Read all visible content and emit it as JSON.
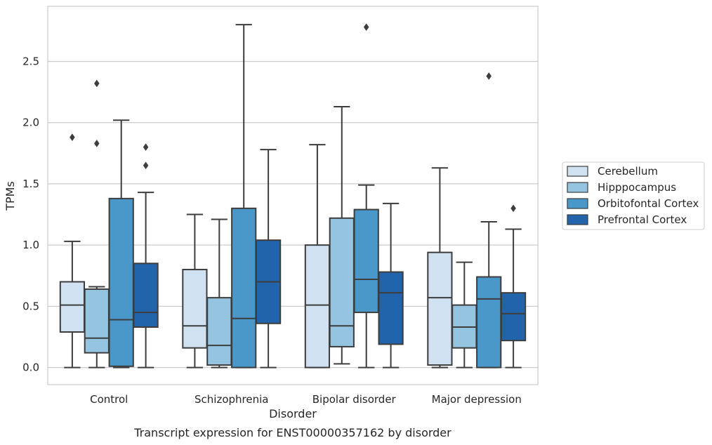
{
  "chart_data": {
    "type": "box",
    "title": "",
    "caption": "Transcript expression for ENST00000357162 by disorder",
    "xlabel": "Disorder",
    "ylabel": "TPMs",
    "ylim": [
      -0.14,
      2.95
    ],
    "yticks": [
      0.0,
      0.5,
      1.0,
      1.5,
      2.0,
      2.5
    ],
    "ytick_labels": [
      "0.0",
      "0.5",
      "1.0",
      "1.5",
      "2.0",
      "2.5"
    ],
    "grid": "horizontal",
    "legend_position": "right",
    "categories": [
      "Control",
      "Schizophrenia",
      "Bipolar disorder",
      "Major depression"
    ],
    "series": [
      {
        "name": "Cerebellum",
        "color": "#d0e1f2",
        "boxes": [
          {
            "whisker_low": 0.0,
            "q1": 0.29,
            "median": 0.51,
            "q3": 0.7,
            "whisker_high": 1.03,
            "outliers": [
              1.88
            ]
          },
          {
            "whisker_low": 0.0,
            "q1": 0.16,
            "median": 0.34,
            "q3": 0.8,
            "whisker_high": 1.25,
            "outliers": []
          },
          {
            "whisker_low": 0.0,
            "q1": 0.0,
            "median": 0.51,
            "q3": 1.0,
            "whisker_high": 1.82,
            "outliers": []
          },
          {
            "whisker_low": 0.0,
            "q1": 0.02,
            "median": 0.57,
            "q3": 0.94,
            "whisker_high": 1.63,
            "outliers": []
          }
        ]
      },
      {
        "name": "Hipppocampus",
        "color": "#94c4df",
        "boxes": [
          {
            "whisker_low": 0.0,
            "q1": 0.12,
            "median": 0.24,
            "q3": 0.64,
            "whisker_high": 0.66,
            "outliers": [
              1.83,
              2.32
            ]
          },
          {
            "whisker_low": 0.0,
            "q1": 0.02,
            "median": 0.18,
            "q3": 0.57,
            "whisker_high": 1.21,
            "outliers": []
          },
          {
            "whisker_low": 0.03,
            "q1": 0.17,
            "median": 0.34,
            "q3": 1.22,
            "whisker_high": 2.13,
            "outliers": []
          },
          {
            "whisker_low": 0.0,
            "q1": 0.16,
            "median": 0.33,
            "q3": 0.51,
            "whisker_high": 0.86,
            "outliers": []
          }
        ]
      },
      {
        "name": "Orbitofontal Cortex",
        "color": "#4a98c9",
        "boxes": [
          {
            "whisker_low": 0.0,
            "q1": 0.01,
            "median": 0.39,
            "q3": 1.38,
            "whisker_high": 2.02,
            "outliers": []
          },
          {
            "whisker_low": 0.0,
            "q1": 0.0,
            "median": 0.4,
            "q3": 1.3,
            "whisker_high": 2.8,
            "outliers": []
          },
          {
            "whisker_low": 0.0,
            "q1": 0.45,
            "median": 0.72,
            "q3": 1.29,
            "whisker_high": 1.49,
            "outliers": [
              2.78
            ]
          },
          {
            "whisker_low": 0.0,
            "q1": 0.0,
            "median": 0.56,
            "q3": 0.74,
            "whisker_high": 1.19,
            "outliers": [
              2.38
            ]
          }
        ]
      },
      {
        "name": "Prefrontal Cortex",
        "color": "#2164ab",
        "boxes": [
          {
            "whisker_low": 0.0,
            "q1": 0.33,
            "median": 0.45,
            "q3": 0.85,
            "whisker_high": 1.43,
            "outliers": [
              1.65,
              1.8
            ]
          },
          {
            "whisker_low": 0.0,
            "q1": 0.36,
            "median": 0.7,
            "q3": 1.04,
            "whisker_high": 1.78,
            "outliers": []
          },
          {
            "whisker_low": 0.0,
            "q1": 0.19,
            "median": 0.61,
            "q3": 0.78,
            "whisker_high": 1.34,
            "outliers": []
          },
          {
            "whisker_low": 0.0,
            "q1": 0.22,
            "median": 0.44,
            "q3": 0.61,
            "whisker_high": 1.13,
            "outliers": [
              1.3
            ]
          }
        ]
      }
    ]
  }
}
